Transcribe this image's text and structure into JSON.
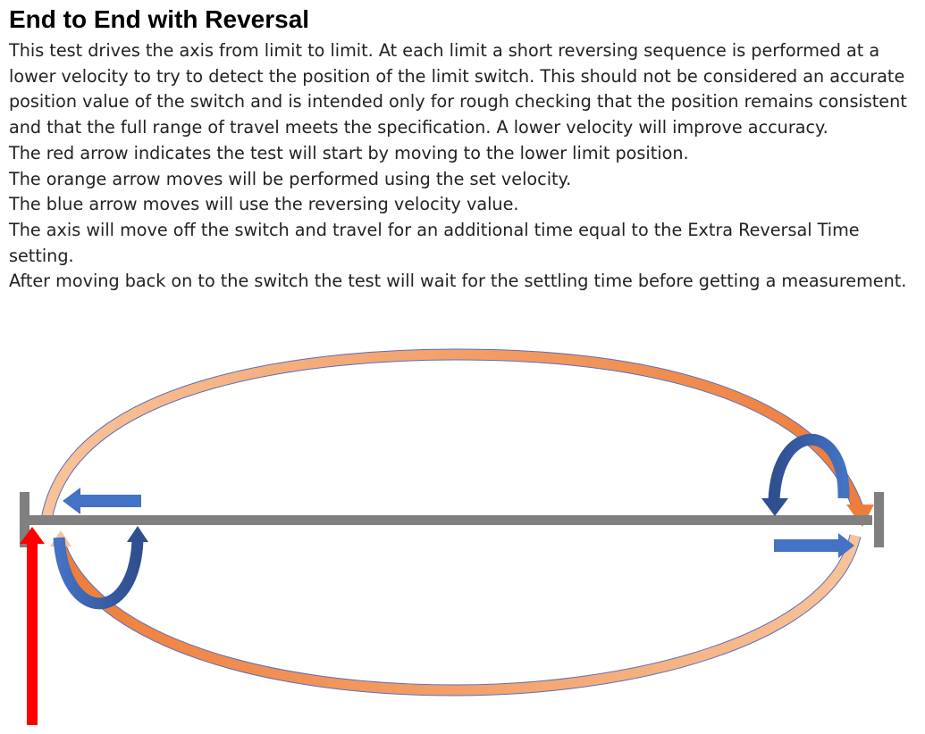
{
  "title": "End to End with Reversal",
  "paragraphs": [
    "This test drives the axis from limit to limit. At each limit a short reversing sequence is performed at a lower velocity to try to detect the position of the limit switch. This should not be considered an accurate position value of the switch and is intended only for rough checking that the position remains consistent and that the full range of travel meets the specification. A lower velocity will improve accuracy.",
    "The red arrow indicates the test will start by moving to the lower limit position.",
    "The orange arrow moves will be performed using the set velocity.",
    "The blue arrow moves will use the reversing velocity value.",
    "The axis will move off the switch and travel for an additional time equal to the Extra Reversal Time setting.",
    "After moving back on to the switch the test will wait for the settling time before getting a measurement."
  ],
  "colors": {
    "axis": "#808080",
    "start_arrow": "#ff0000",
    "orange_light": "#f8c39a",
    "orange_dark": "#ee7d3a",
    "blue_light": "#4472c4",
    "blue_dark": "#2f4f8f",
    "outline": "#5b6fb8"
  }
}
